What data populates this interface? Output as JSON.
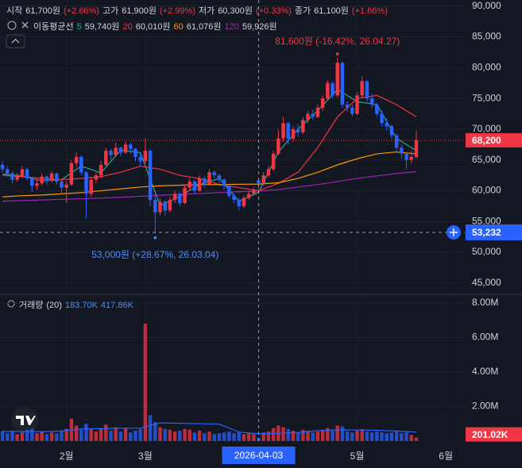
{
  "chart_data": {
    "type": "candlestick",
    "ohlc_legend": [
      {
        "name": "시작",
        "value": "61,700원",
        "change": "(+2.66%)"
      },
      {
        "name": "고가",
        "value": "61,900원",
        "change": "(+2.99%)"
      },
      {
        "name": "저가",
        "value": "60,300원",
        "change": "(+0.33%)"
      },
      {
        "name": "종가",
        "value": "61,100원",
        "change": "(+1.66%)"
      }
    ],
    "ma_legend_title": "이동평균선",
    "ma_x": [
      0,
      4,
      8,
      12,
      16,
      20,
      24,
      28,
      32,
      36,
      40,
      44,
      48,
      52,
      56,
      60,
      64,
      68,
      72,
      76,
      80,
      84
    ],
    "moving_averages": [
      {
        "name": 5,
        "label": "59,740원",
        "color": "#22ab94",
        "values": [
          62700,
          62400,
          61600,
          61800,
          64000,
          62900,
          66600,
          66200,
          57600,
          59100,
          61000,
          62000,
          58300,
          59740,
          66300,
          70000,
          73000,
          76500,
          74500,
          74000,
          68500,
          66500
        ]
      },
      {
        "name": 20,
        "label": "60,010원",
        "color": "#f23645",
        "values": [
          62500,
          62300,
          62000,
          61800,
          62000,
          62300,
          63000,
          64000,
          63500,
          62500,
          62000,
          61000,
          60500,
          60010,
          61200,
          63000,
          67000,
          72000,
          75000,
          75500,
          74000,
          72000
        ]
      },
      {
        "name": 60,
        "label": "61,076원",
        "color": "#ff9800",
        "values": [
          59000,
          59200,
          59300,
          59500,
          59700,
          60000,
          60300,
          60600,
          60800,
          60900,
          61000,
          61000,
          61050,
          61076,
          61300,
          62000,
          63000,
          64200,
          65200,
          66000,
          66300,
          66000
        ]
      },
      {
        "name": 120,
        "label": "59,926원",
        "color": "#9c27b0",
        "values": [
          58300,
          58400,
          58500,
          58600,
          58700,
          58800,
          58950,
          59100,
          59250,
          59400,
          59550,
          59700,
          59850,
          59926,
          60200,
          60600,
          61000,
          61500,
          62000,
          62400,
          62800,
          63100
        ]
      }
    ],
    "open": [
      64200,
      63500,
      62800,
      61800,
      62400,
      63500,
      62000,
      60800,
      61200,
      62300,
      61600,
      62800,
      61500,
      60500,
      61000,
      64500,
      65500,
      63000,
      59500,
      61800,
      62500,
      64200,
      66500,
      65800,
      67000,
      66200,
      67500,
      66800,
      65500,
      64800,
      66500,
      58500,
      56500,
      58200,
      56800,
      58500,
      59500,
      58000,
      60500,
      61500,
      60000,
      62000,
      61000,
      63000,
      62500,
      61800,
      60800,
      59200,
      58500,
      57500,
      58800,
      59500,
      61700,
      61100,
      62500,
      63500,
      66000,
      68500,
      71000,
      68500,
      70000,
      69500,
      71500,
      72500,
      72000,
      73500,
      75000,
      77500,
      75500,
      80800,
      74000,
      73500,
      72500,
      75500,
      77800,
      75000,
      74000,
      72500,
      71000,
      70500,
      69000,
      67000,
      66000,
      65000,
      65500
    ],
    "high": [
      64800,
      64000,
      63200,
      62900,
      64000,
      63800,
      62200,
      61800,
      62800,
      62500,
      63200,
      63000,
      61800,
      61500,
      65000,
      66200,
      65800,
      63200,
      62200,
      63000,
      64800,
      67000,
      66800,
      67800,
      67200,
      68000,
      67800,
      67000,
      66000,
      68500,
      66800,
      59500,
      58800,
      58500,
      59000,
      60000,
      59800,
      61000,
      62000,
      61800,
      62500,
      62300,
      63500,
      63300,
      62800,
      62000,
      61000,
      59500,
      58800,
      59200,
      60000,
      60500,
      61900,
      63000,
      64000,
      66500,
      70000,
      72000,
      71200,
      70500,
      70800,
      72000,
      73000,
      73200,
      74000,
      75500,
      78000,
      77800,
      81600,
      81000,
      74500,
      74000,
      76000,
      78600,
      78000,
      75800,
      74300,
      73000,
      71800,
      70800,
      69300,
      67500,
      66300,
      66500,
      69800
    ],
    "low": [
      63000,
      62300,
      61200,
      61500,
      62000,
      61700,
      59800,
      60200,
      60900,
      61000,
      61300,
      61000,
      59500,
      58000,
      60800,
      63800,
      62500,
      55500,
      59000,
      61200,
      62000,
      64000,
      65000,
      65500,
      65600,
      66000,
      66000,
      64800,
      64000,
      64500,
      57500,
      53000,
      56000,
      56000,
      56500,
      58000,
      57500,
      57800,
      60000,
      59500,
      59800,
      60500,
      60800,
      62000,
      61200,
      60200,
      58800,
      58000,
      56800,
      57200,
      58500,
      59200,
      60300,
      60900,
      62200,
      63200,
      65800,
      68000,
      67500,
      68000,
      68800,
      69200,
      71000,
      71500,
      71800,
      73000,
      74800,
      75000,
      75200,
      73500,
      72800,
      72000,
      72300,
      75000,
      74500,
      73500,
      72000,
      70500,
      69800,
      68500,
      66500,
      65200,
      63500,
      64500,
      65200
    ],
    "close": [
      63500,
      62800,
      61800,
      62400,
      63500,
      62000,
      60800,
      61200,
      62300,
      61600,
      62800,
      61500,
      60500,
      61000,
      64500,
      65500,
      63000,
      59500,
      61800,
      62500,
      64200,
      66500,
      65800,
      67000,
      66200,
      67500,
      66800,
      65500,
      64800,
      66500,
      58500,
      56500,
      58200,
      56800,
      58500,
      59500,
      58000,
      60500,
      61500,
      60000,
      62000,
      61000,
      63000,
      62500,
      61800,
      60800,
      59200,
      58500,
      57500,
      58800,
      59500,
      60100,
      61100,
      62500,
      63500,
      66000,
      68500,
      71000,
      68500,
      70000,
      69500,
      71500,
      72500,
      72000,
      73500,
      75000,
      77500,
      75500,
      80800,
      74000,
      73500,
      72500,
      75500,
      77800,
      75000,
      74000,
      72500,
      71000,
      70500,
      69000,
      67000,
      66000,
      65000,
      65500,
      68200
    ],
    "up_color": "#f23645",
    "down_color": "#2962ff",
    "grid": true,
    "xlim": [
      -0.5,
      93.85
    ],
    "xticks": [
      {
        "value": 13,
        "label": "2월"
      },
      {
        "value": 29,
        "label": "3월"
      },
      {
        "value": 72,
        "label": "5월"
      },
      {
        "value": 90,
        "label": "6월"
      }
    ],
    "ylim": [
      43300,
      91000
    ],
    "yticks": [
      {
        "value": 45000,
        "label": "45,000"
      },
      {
        "value": 50000,
        "label": "50,000"
      },
      {
        "value": 55000,
        "label": "55,000"
      },
      {
        "value": 60000,
        "label": "60,000"
      },
      {
        "value": 65000,
        "label": "65,000"
      },
      {
        "value": 70000,
        "label": "70,000"
      },
      {
        "value": 75000,
        "label": "75,000"
      },
      {
        "value": 80000,
        "label": "80,000"
      },
      {
        "value": 85000,
        "label": "85,000"
      },
      {
        "value": 90000,
        "label": "90,000"
      }
    ],
    "last_price": {
      "value": 68200,
      "label": "68,200"
    },
    "crosshair": {
      "x": 52,
      "x_label": "2026-04-03",
      "y": 53232,
      "y_label": "53,232"
    },
    "annotations": [
      {
        "x": 68,
        "y": 81600,
        "text": "81,600원 (-16.42%, 26.04.27)",
        "color": "#f23645"
      },
      {
        "x": 31,
        "y": 53000,
        "text": "53,000원 (+28.67%, 26.03.04)",
        "color": "#4c8df6"
      }
    ],
    "volume": {
      "title": "거래량",
      "period": "(20)",
      "legend": [
        "183.70K",
        "417.86K"
      ],
      "legend_color": "#4c8df6",
      "values": [
        550000,
        450000,
        600000,
        400000,
        500000,
        650000,
        700000,
        450000,
        550000,
        400000,
        500000,
        450000,
        600000,
        700000,
        1300000,
        900000,
        650000,
        1000000,
        700000,
        550000,
        750000,
        950000,
        600000,
        800000,
        550000,
        750000,
        500000,
        600000,
        700000,
        6800000,
        1500000,
        1100000,
        800000,
        700000,
        650000,
        550000,
        600000,
        700000,
        650000,
        500000,
        600000,
        450000,
        550000,
        400000,
        450000,
        500000,
        550000,
        450000,
        500000,
        400000,
        450000,
        400000,
        183700,
        500000,
        550000,
        750000,
        900000,
        800000,
        700000,
        600000,
        500000,
        650000,
        600000,
        500000,
        550000,
        650000,
        750000,
        600000,
        900000,
        850000,
        550000,
        500000,
        600000,
        700000,
        550000,
        500000,
        550000,
        500000,
        450000,
        500000,
        550000,
        450000,
        500000,
        350000,
        201020
      ],
      "ylim": [
        0,
        8460000
      ],
      "yticks": [
        {
          "value": 2000000,
          "label": "2.00M"
        },
        {
          "value": 4000000,
          "label": "4.00M"
        },
        {
          "value": 6000000,
          "label": "6.00M"
        },
        {
          "value": 8000000,
          "label": "8.00M"
        }
      ],
      "last": {
        "value": 201020,
        "label": "201.02K"
      },
      "ma": {
        "color": "#2962ff",
        "values": [
          560000,
          550000,
          540000,
          580000,
          700000,
          720000,
          740000,
          750000,
          1050000,
          1030000,
          1000000,
          980000,
          520000,
          417860,
          450000,
          500000,
          600000,
          650000,
          640000,
          620000,
          580000,
          520000
        ]
      }
    }
  }
}
